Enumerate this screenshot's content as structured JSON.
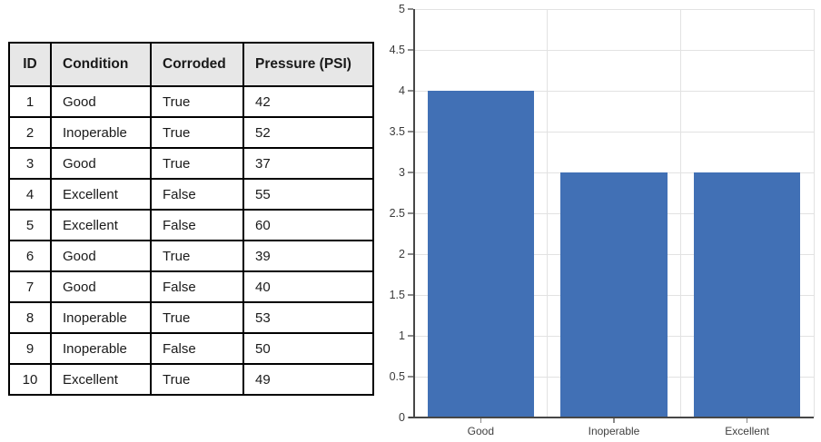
{
  "table": {
    "columns": [
      "ID",
      "Condition",
      "Corroded",
      "Pressure (PSI)"
    ],
    "rows": [
      [
        "1",
        "Good",
        "True",
        "42"
      ],
      [
        "2",
        "Inoperable",
        "True",
        "52"
      ],
      [
        "3",
        "Good",
        "True",
        "37"
      ],
      [
        "4",
        "Excellent",
        "False",
        "55"
      ],
      [
        "5",
        "Excellent",
        "False",
        "60"
      ],
      [
        "6",
        "Good",
        "True",
        "39"
      ],
      [
        "7",
        "Good",
        "False",
        "40"
      ],
      [
        "8",
        "Inoperable",
        "True",
        "53"
      ],
      [
        "9",
        "Inoperable",
        "False",
        "50"
      ],
      [
        "10",
        "Excellent",
        "True",
        "49"
      ]
    ],
    "header_bg": "#e7e7e7",
    "border_color": "#000000"
  },
  "chart_data": {
    "type": "bar",
    "categories": [
      "Good",
      "Inoperable",
      "Excellent"
    ],
    "values": [
      4,
      3,
      3
    ],
    "title": "",
    "xlabel": "",
    "ylabel": "",
    "ylim": [
      0,
      5
    ],
    "ytick_step": 0.5,
    "ytick_labels": [
      "0",
      "0.5",
      "1",
      "1.5",
      "2",
      "2.5",
      "3",
      "3.5",
      "4",
      "4.5",
      "5"
    ],
    "bar_color": "#4170b5",
    "gridline_color": "#e2e2e2",
    "axis_color": "#474747",
    "tick_color": "#8a8a8a",
    "bar_width_ratio": 0.8,
    "grid": true,
    "legend": false
  }
}
